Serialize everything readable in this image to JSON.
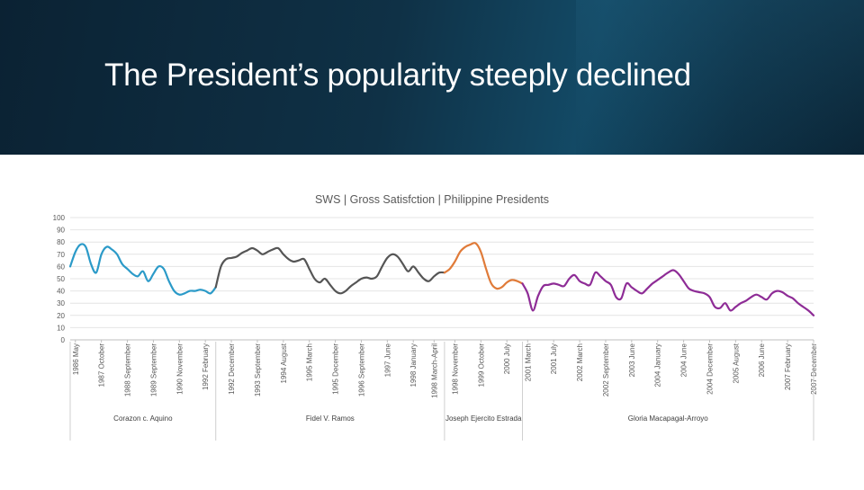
{
  "slide": {
    "title": "The President’s popularity steeply declined"
  },
  "chart_data": {
    "type": "line",
    "title": "SWS | Gross Satisfction | Philippine Presidents",
    "ylim": [
      0,
      100
    ],
    "yticks": [
      0,
      10,
      20,
      30,
      40,
      50,
      60,
      70,
      80,
      90,
      100
    ],
    "grid": true,
    "xlim": [
      0,
      143
    ],
    "tick_labels": [
      {
        "x": 1,
        "label": "1986 May"
      },
      {
        "x": 6,
        "label": "1987 October"
      },
      {
        "x": 11,
        "label": "1988 September"
      },
      {
        "x": 16,
        "label": "1989 September"
      },
      {
        "x": 21,
        "label": "1990 November"
      },
      {
        "x": 26,
        "label": "1992 February"
      },
      {
        "x": 31,
        "label": "1992 December"
      },
      {
        "x": 36,
        "label": "1993 September"
      },
      {
        "x": 41,
        "label": "1994 August"
      },
      {
        "x": 46,
        "label": "1995 March"
      },
      {
        "x": 51,
        "label": "1995 December"
      },
      {
        "x": 56,
        "label": "1996 September"
      },
      {
        "x": 61,
        "label": "1997 June"
      },
      {
        "x": 66,
        "label": "1998 January"
      },
      {
        "x": 70,
        "label": "1998 March-April"
      },
      {
        "x": 74,
        "label": "1998 November"
      },
      {
        "x": 79,
        "label": "1999 October"
      },
      {
        "x": 84,
        "label": "2000 July"
      },
      {
        "x": 88,
        "label": "2001 March"
      },
      {
        "x": 93,
        "label": "2001 July"
      },
      {
        "x": 98,
        "label": "2002 March"
      },
      {
        "x": 103,
        "label": "2002 September"
      },
      {
        "x": 108,
        "label": "2003 June"
      },
      {
        "x": 113,
        "label": "2004 January"
      },
      {
        "x": 118,
        "label": "2004 June"
      },
      {
        "x": 123,
        "label": "2004 December"
      },
      {
        "x": 128,
        "label": "2005 August"
      },
      {
        "x": 133,
        "label": "2006 June"
      },
      {
        "x": 138,
        "label": "2007 February"
      },
      {
        "x": 143,
        "label": "2007 December"
      }
    ],
    "presidents": [
      {
        "name": "Corazon c. Aquino",
        "color": "#2b9ac8",
        "x0": 0,
        "x1": 28
      },
      {
        "name": "Fidel V. Ramos",
        "color": "#555555",
        "x0": 28,
        "x1": 72
      },
      {
        "name": "Joseph Ejercito Estrada",
        "color": "#e07b39",
        "x0": 72,
        "x1": 87
      },
      {
        "name": "Gloria Macapagal-Arroyo",
        "color": "#8e2c96",
        "x0": 87,
        "x1": 143
      }
    ],
    "series": [
      {
        "color": "#2b9ac8",
        "x": [
          0,
          1,
          2,
          3,
          4,
          5,
          6,
          7,
          8,
          9,
          10,
          11,
          12,
          13,
          14,
          15,
          16,
          17,
          18,
          19,
          20,
          21,
          22,
          23,
          24,
          25,
          26,
          27,
          28
        ],
        "values": [
          60,
          72,
          78,
          76,
          62,
          55,
          70,
          76,
          74,
          70,
          62,
          58,
          54,
          52,
          56,
          48,
          54,
          60,
          58,
          48,
          40,
          37,
          38,
          40,
          40,
          41,
          40,
          38,
          43
        ]
      },
      {
        "color": "#555555",
        "x": [
          28,
          29,
          30,
          31,
          32,
          33,
          34,
          35,
          36,
          37,
          38,
          39,
          40,
          41,
          42,
          43,
          44,
          45,
          46,
          47,
          48,
          49,
          50,
          51,
          52,
          53,
          54,
          55,
          56,
          57,
          58,
          59,
          60,
          61,
          62,
          63,
          64,
          65,
          66,
          67,
          68,
          69,
          70,
          71,
          72
        ],
        "values": [
          43,
          60,
          66,
          67,
          68,
          71,
          73,
          75,
          73,
          70,
          72,
          74,
          75,
          70,
          66,
          64,
          65,
          66,
          58,
          50,
          47,
          50,
          45,
          40,
          38,
          40,
          44,
          47,
          50,
          51,
          50,
          52,
          60,
          67,
          70,
          68,
          62,
          56,
          60,
          55,
          50,
          48,
          52,
          55,
          55
        ]
      },
      {
        "color": "#e07b39",
        "x": [
          72,
          73,
          74,
          75,
          76,
          77,
          78,
          79,
          80,
          81,
          82,
          83,
          84,
          85,
          86,
          87
        ],
        "values": [
          55,
          58,
          64,
          72,
          76,
          78,
          79,
          72,
          58,
          46,
          42,
          43,
          47,
          49,
          48,
          46
        ]
      },
      {
        "color": "#8e2c96",
        "x": [
          87,
          88,
          89,
          90,
          91,
          92,
          93,
          94,
          95,
          96,
          97,
          98,
          99,
          100,
          101,
          102,
          103,
          104,
          105,
          106,
          107,
          108,
          109,
          110,
          111,
          112,
          113,
          114,
          115,
          116,
          117,
          118,
          119,
          120,
          121,
          122,
          123,
          124,
          125,
          126,
          127,
          128,
          129,
          130,
          131,
          132,
          133,
          134,
          135,
          136,
          137,
          138,
          139,
          140,
          141,
          142,
          143
        ],
        "values": [
          46,
          38,
          24,
          36,
          44,
          45,
          46,
          45,
          44,
          50,
          53,
          48,
          46,
          45,
          55,
          52,
          48,
          45,
          35,
          34,
          46,
          43,
          40,
          38,
          42,
          46,
          49,
          52,
          55,
          57,
          54,
          48,
          42,
          40,
          39,
          38,
          35,
          27,
          26,
          30,
          24,
          27,
          30,
          32,
          35,
          37,
          35,
          33,
          38,
          40,
          39,
          36,
          34,
          30,
          27,
          24,
          20
        ]
      }
    ]
  }
}
